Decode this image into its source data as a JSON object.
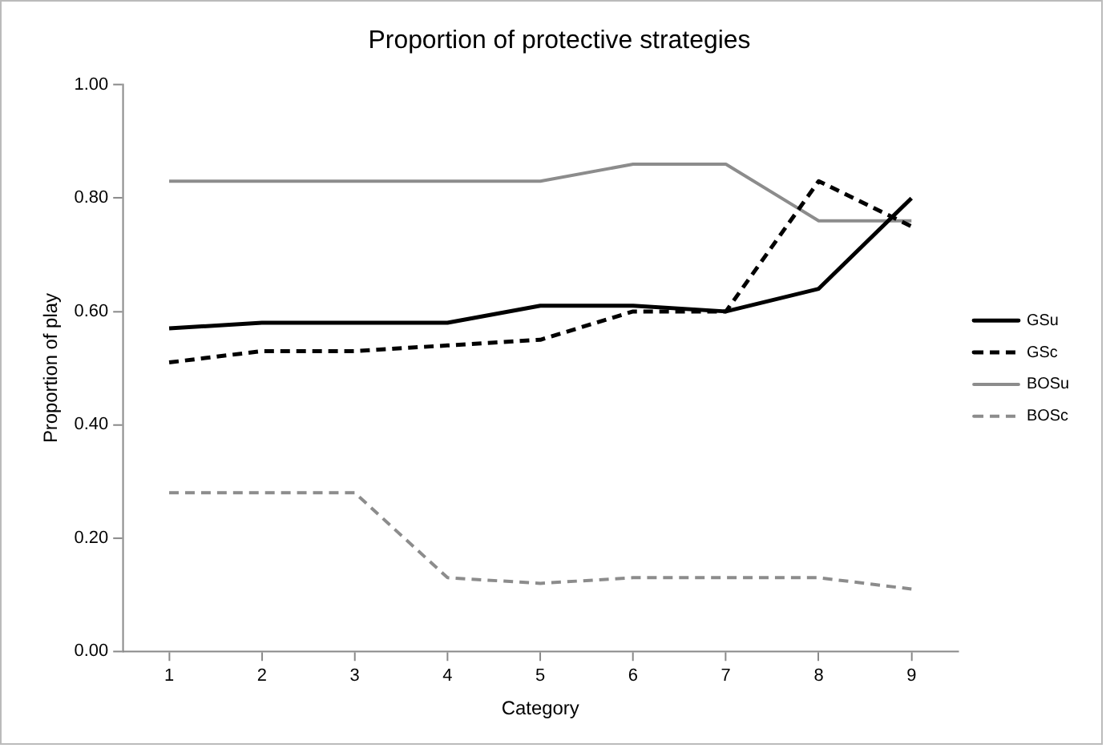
{
  "chart_data": {
    "type": "line",
    "title": "Proportion of protective strategies",
    "xlabel": "Category",
    "ylabel": "Proportion of play",
    "categories": [
      "1",
      "2",
      "3",
      "4",
      "5",
      "6",
      "7",
      "8",
      "9"
    ],
    "ylim": [
      0,
      1
    ],
    "yticks": [
      {
        "value": 0,
        "label": "0.00"
      },
      {
        "value": 0.2,
        "label": "0.20"
      },
      {
        "value": 0.4,
        "label": "0.40"
      },
      {
        "value": 0.6,
        "label": "0.60"
      },
      {
        "value": 0.8,
        "label": "0.80"
      },
      {
        "value": 1,
        "label": "1.00"
      }
    ],
    "grid": false,
    "legend": "right",
    "marker": "none",
    "series": [
      {
        "name": "GSu",
        "color": "#000000",
        "line_style": "solid",
        "values": [
          0.57,
          0.58,
          0.58,
          0.58,
          0.61,
          0.61,
          0.6,
          0.64,
          0.8
        ]
      },
      {
        "name": "GSc",
        "color": "#000000",
        "line_style": "dashed",
        "values": [
          0.51,
          0.53,
          0.53,
          0.54,
          0.55,
          0.6,
          0.6,
          0.83,
          0.75
        ]
      },
      {
        "name": "BOSu",
        "color": "#8c8c8c",
        "line_style": "solid",
        "values": [
          0.83,
          0.83,
          0.83,
          0.83,
          0.83,
          0.86,
          0.86,
          0.76,
          0.76
        ]
      },
      {
        "name": "BOSc",
        "color": "#8c8c8c",
        "line_style": "dashed",
        "values": [
          0.28,
          0.28,
          0.28,
          0.13,
          0.12,
          0.13,
          0.13,
          0.13,
          0.11
        ]
      }
    ]
  }
}
